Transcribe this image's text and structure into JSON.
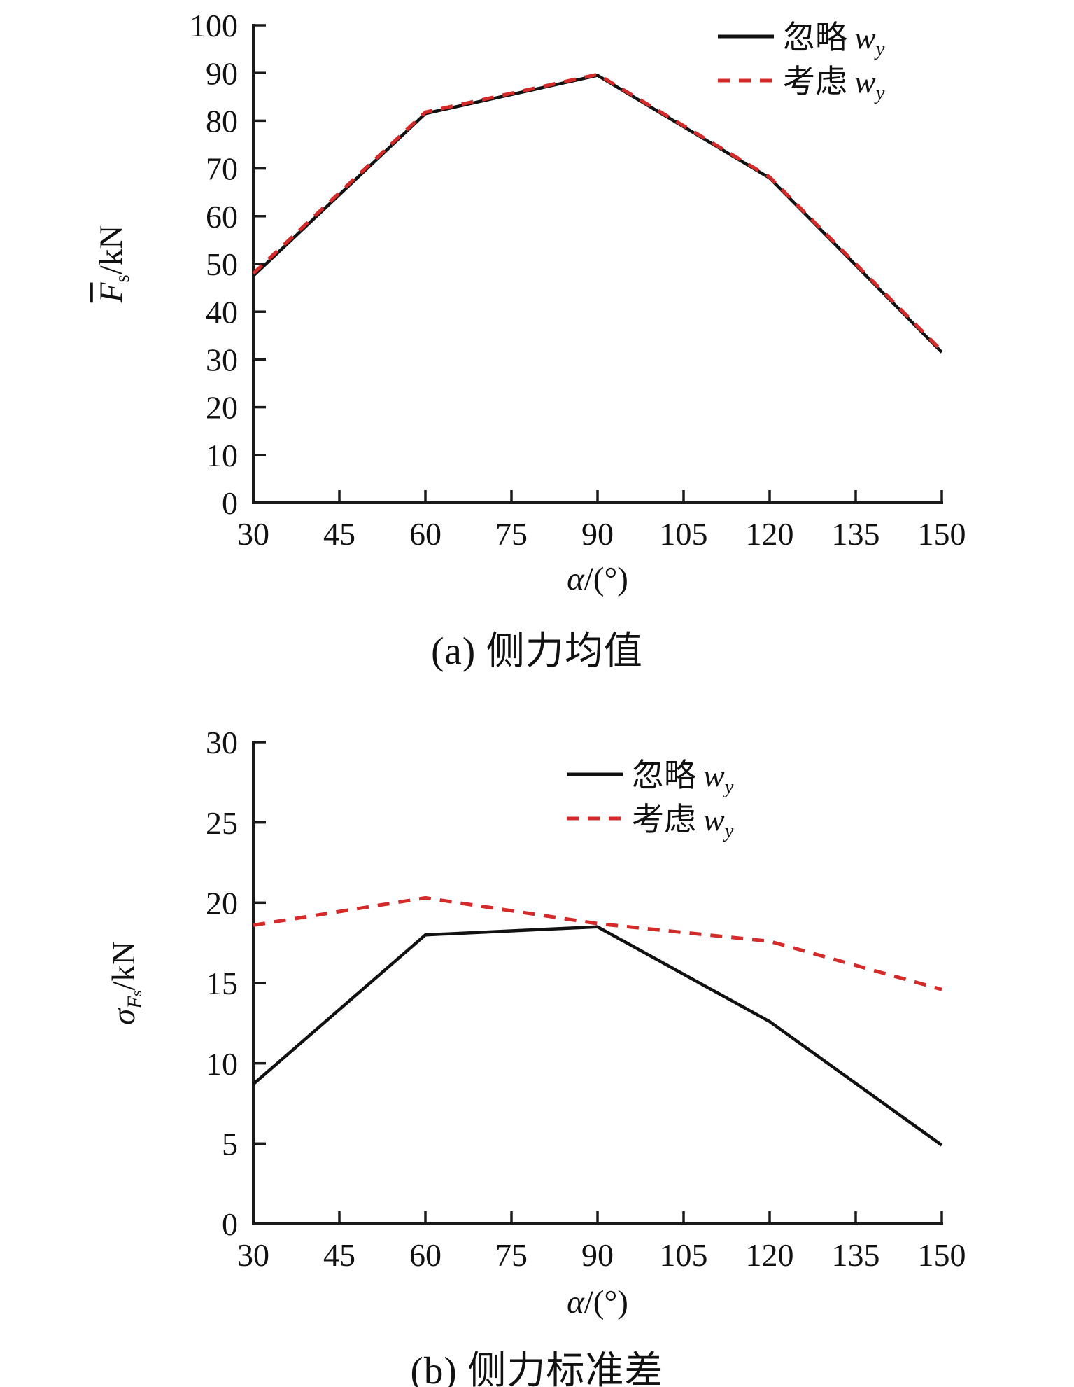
{
  "page": {
    "background": "#ffffff"
  },
  "colors": {
    "axis": "#1a1a1a",
    "text": "#111111",
    "black_series": "#111111",
    "red_series": "#d42a2a"
  },
  "panel_a": {
    "caption": "(a) 侧力均值",
    "xlabel": {
      "var": "α",
      "rest": "/(°)"
    },
    "ylabel": {
      "var": "F",
      "sub": "s",
      "unit": "/kN"
    },
    "legend": [
      {
        "prefix": "忽略",
        "var": "w",
        "sub": "y"
      },
      {
        "prefix": "考虑",
        "var": "w",
        "sub": "y"
      }
    ]
  },
  "panel_b": {
    "caption": "(b) 侧力标准差",
    "xlabel": {
      "var": "α",
      "rest": "/(°)"
    },
    "ylabel": {
      "var": "σ",
      "subvar": "F",
      "subsub": "s",
      "unit": "/kN"
    },
    "legend": [
      {
        "prefix": "忽略",
        "var": "w",
        "sub": "y"
      },
      {
        "prefix": "考虑",
        "var": "w",
        "sub": "y"
      }
    ]
  },
  "chart_data": [
    {
      "type": "line",
      "title": "(a) 侧力均值",
      "xlabel": "α/(°)",
      "ylabel": "F̄s/kN",
      "xlim": [
        30,
        150
      ],
      "ylim": [
        0,
        100
      ],
      "xticks": [
        30,
        45,
        60,
        75,
        90,
        105,
        120,
        135,
        150
      ],
      "ytick_step": 10,
      "grid": false,
      "legend_position": "top-right-inside",
      "x": [
        30,
        60,
        90,
        120,
        150
      ],
      "series": [
        {
          "name": "忽略 wy",
          "color": "#111111",
          "line": "solid",
          "width": 4.5,
          "values": [
            47.5,
            81.5,
            89.5,
            68.0,
            31.5
          ]
        },
        {
          "name": "考虑 wy",
          "color": "#d42a2a",
          "line": "dashed",
          "width": 5,
          "values": [
            48.0,
            81.8,
            89.7,
            68.2,
            31.8
          ]
        }
      ]
    },
    {
      "type": "line",
      "title": "(b) 侧力标准差",
      "xlabel": "α/(°)",
      "ylabel": "σFs/kN",
      "xlim": [
        30,
        150
      ],
      "ylim": [
        0,
        30
      ],
      "xticks": [
        30,
        45,
        60,
        75,
        90,
        105,
        120,
        135,
        150
      ],
      "ytick_step": 5,
      "grid": false,
      "legend_position": "top-right-inside",
      "x": [
        30,
        60,
        90,
        120,
        150
      ],
      "series": [
        {
          "name": "忽略 wy",
          "color": "#111111",
          "line": "solid",
          "width": 4.5,
          "values": [
            8.7,
            18.0,
            18.5,
            12.6,
            4.9
          ]
        },
        {
          "name": "考虑 wy",
          "color": "#d42a2a",
          "line": "dashed",
          "width": 5,
          "values": [
            18.6,
            20.3,
            18.7,
            17.6,
            14.6
          ]
        }
      ]
    }
  ]
}
